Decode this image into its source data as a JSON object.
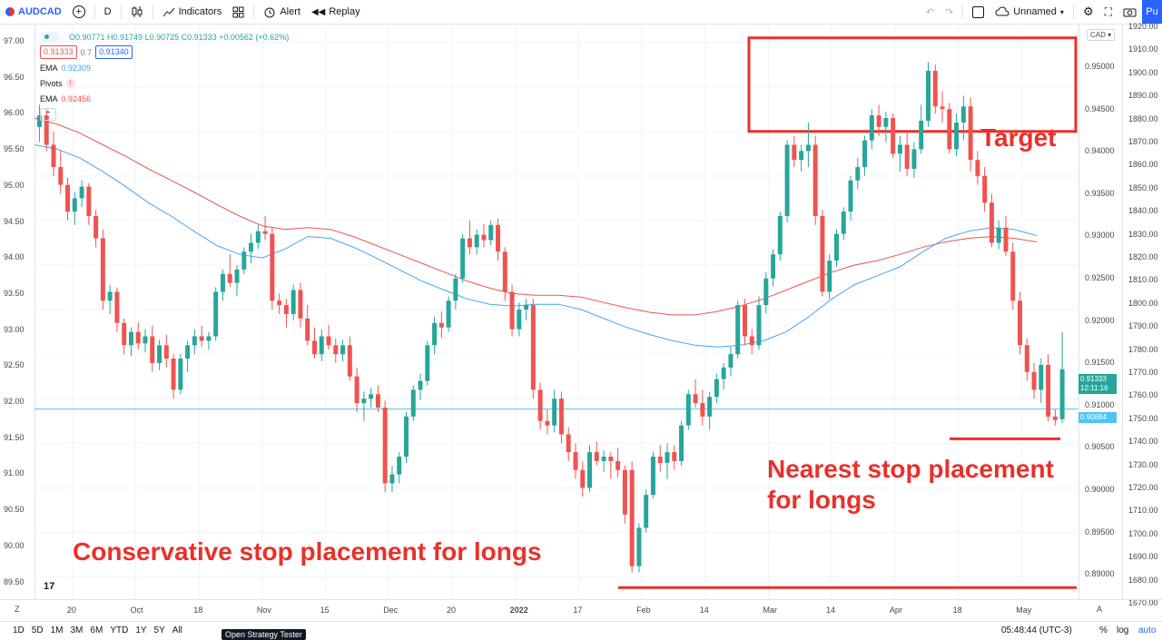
{
  "toolbar": {
    "symbol": "AUDCAD",
    "interval": "D",
    "indicators_label": "Indicators",
    "alert_label": "Alert",
    "replay_label": "Replay",
    "layout_name": "Unnamed",
    "publish_label": "Pu"
  },
  "legend": {
    "ohlc": "O0.90771 H0.91749 L0.90725 C0.91333 +0.00562 (+0.62%)",
    "bid": "0.91333",
    "spread": "0.7",
    "ask": "0.91340",
    "ema1_label": "EMA",
    "ema1_value": "0.92309",
    "pivots_label": "Pivots",
    "ema2_label": "EMA",
    "ema2_value": "0.92456"
  },
  "left_axis": [
    "97.00",
    "96.50",
    "96.00",
    "95.50",
    "95.00",
    "94.50",
    "94.00",
    "93.50",
    "93.00",
    "92.50",
    "92.00",
    "91.50",
    "91.00",
    "90.50",
    "90.00",
    "89.50"
  ],
  "right_axis_price": [
    "0.95000",
    "0.94500",
    "0.94000",
    "0.93500",
    "0.93000",
    "0.92500",
    "0.92000",
    "0.91500",
    "0.91000",
    "0.90500",
    "0.90000",
    "0.89500",
    "0.89000"
  ],
  "right_axis_outer": [
    "1920.00",
    "1910.00",
    "1900.00",
    "1890.00",
    "1880.00",
    "1870.00",
    "1860.00",
    "1850.00",
    "1840.00",
    "1830.00",
    "1820.00",
    "1810.00",
    "1800.00",
    "1790.00",
    "1780.00",
    "1770.00",
    "1760.00",
    "1750.00",
    "1740.00",
    "1730.00",
    "1720.00",
    "1710.00",
    "1700.00",
    "1690.00",
    "1680.00",
    "1670.00"
  ],
  "currency_tag": "CAD",
  "price_tag": {
    "price": "0.91333",
    "countdown": "12:11:16",
    "line_price": "0.90884"
  },
  "time_axis": [
    "20",
    "Oct",
    "18",
    "Nov",
    "15",
    "Dec",
    "20",
    "2022",
    "17",
    "Feb",
    "14",
    "Mar",
    "14",
    "Apr",
    "18",
    "May"
  ],
  "axis_corner_left": "Z",
  "axis_corner_right": "A",
  "annotations": {
    "target": "Target",
    "nearest_stop": "Nearest stop placement\nfor longs",
    "conservative_stop": "Conservative stop placement for longs"
  },
  "bottom_bar": {
    "timeframes": [
      "1D",
      "5D",
      "1M",
      "3M",
      "6M",
      "YTD",
      "1Y",
      "5Y",
      "All"
    ],
    "strategy_tester": "Open Strategy Tester",
    "clock": "05:48:44 (UTC-3)",
    "percent": "%",
    "log": "log",
    "auto": "auto"
  },
  "colors": {
    "up": "#26a69a",
    "down": "#ef5350",
    "ema_fast": "#42a5f5",
    "ema_slow": "#ef5350",
    "annotation": "#e8312a",
    "accent": "#2962ff"
  },
  "chart_data": {
    "type": "candlestick",
    "price_range": [
      0.8875,
      0.952
    ],
    "candles": [
      [
        0.9405,
        0.943,
        0.9388,
        0.9418
      ],
      [
        0.9418,
        0.9425,
        0.9378,
        0.9385
      ],
      [
        0.9385,
        0.94,
        0.935,
        0.936
      ],
      [
        0.936,
        0.9378,
        0.933,
        0.934
      ],
      [
        0.934,
        0.9348,
        0.93,
        0.931
      ],
      [
        0.931,
        0.9332,
        0.9295,
        0.9325
      ],
      [
        0.9325,
        0.9345,
        0.9315,
        0.9338
      ],
      [
        0.9338,
        0.9342,
        0.9295,
        0.9305
      ],
      [
        0.9305,
        0.9312,
        0.927,
        0.928
      ],
      [
        0.928,
        0.929,
        0.92,
        0.921
      ],
      [
        0.921,
        0.9228,
        0.9195,
        0.922
      ],
      [
        0.922,
        0.9225,
        0.9175,
        0.9185
      ],
      [
        0.9185,
        0.919,
        0.915,
        0.916
      ],
      [
        0.916,
        0.918,
        0.9148,
        0.9175
      ],
      [
        0.9175,
        0.9186,
        0.9155,
        0.9162
      ],
      [
        0.9162,
        0.9178,
        0.9152,
        0.917
      ],
      [
        0.917,
        0.9182,
        0.913,
        0.914
      ],
      [
        0.914,
        0.9166,
        0.9132,
        0.916
      ],
      [
        0.916,
        0.9172,
        0.9135,
        0.9145
      ],
      [
        0.9145,
        0.915,
        0.91,
        0.911
      ],
      [
        0.911,
        0.915,
        0.9105,
        0.9145
      ],
      [
        0.9145,
        0.9165,
        0.913,
        0.916
      ],
      [
        0.916,
        0.9178,
        0.915,
        0.917
      ],
      [
        0.917,
        0.9182,
        0.9158,
        0.9165
      ],
      [
        0.9165,
        0.9175,
        0.9155,
        0.917
      ],
      [
        0.917,
        0.9225,
        0.9165,
        0.922
      ],
      [
        0.922,
        0.9245,
        0.921,
        0.924
      ],
      [
        0.924,
        0.9262,
        0.9225,
        0.923
      ],
      [
        0.923,
        0.925,
        0.9215,
        0.9245
      ],
      [
        0.9245,
        0.927,
        0.924,
        0.9265
      ],
      [
        0.9265,
        0.9285,
        0.9252,
        0.9275
      ],
      [
        0.9275,
        0.9295,
        0.9268,
        0.9288
      ],
      [
        0.9288,
        0.9305,
        0.9278,
        0.9285
      ],
      [
        0.9285,
        0.9292,
        0.92,
        0.921
      ],
      [
        0.921,
        0.9218,
        0.9195,
        0.9205
      ],
      [
        0.9205,
        0.9212,
        0.918,
        0.9195
      ],
      [
        0.9195,
        0.9228,
        0.9188,
        0.9222
      ],
      [
        0.9222,
        0.923,
        0.918,
        0.919
      ],
      [
        0.919,
        0.9205,
        0.916,
        0.9165
      ],
      [
        0.9165,
        0.918,
        0.9145,
        0.915
      ],
      [
        0.915,
        0.9178,
        0.9142,
        0.917
      ],
      [
        0.917,
        0.9183,
        0.9155,
        0.916
      ],
      [
        0.916,
        0.9168,
        0.914,
        0.915
      ],
      [
        0.915,
        0.9166,
        0.9142,
        0.916
      ],
      [
        0.916,
        0.917,
        0.912,
        0.9125
      ],
      [
        0.9125,
        0.9135,
        0.9085,
        0.9095
      ],
      [
        0.9095,
        0.9108,
        0.9075,
        0.91
      ],
      [
        0.91,
        0.9112,
        0.909,
        0.9105
      ],
      [
        0.9105,
        0.9115,
        0.9085,
        0.909
      ],
      [
        0.909,
        0.9098,
        0.8995,
        0.9005
      ],
      [
        0.9005,
        0.9025,
        0.8995,
        0.9015
      ],
      [
        0.9015,
        0.904,
        0.9005,
        0.9035
      ],
      [
        0.9035,
        0.9085,
        0.9028,
        0.908
      ],
      [
        0.908,
        0.9115,
        0.9075,
        0.911
      ],
      [
        0.911,
        0.9128,
        0.9098,
        0.912
      ],
      [
        0.912,
        0.9165,
        0.9115,
        0.916
      ],
      [
        0.916,
        0.9192,
        0.915,
        0.9185
      ],
      [
        0.9185,
        0.9198,
        0.9168,
        0.918
      ],
      [
        0.918,
        0.9215,
        0.9175,
        0.921
      ],
      [
        0.921,
        0.924,
        0.92,
        0.9235
      ],
      [
        0.9235,
        0.9285,
        0.923,
        0.928
      ],
      [
        0.928,
        0.93,
        0.9262,
        0.927
      ],
      [
        0.927,
        0.929,
        0.9262,
        0.9284
      ],
      [
        0.9284,
        0.9296,
        0.927,
        0.9278
      ],
      [
        0.9278,
        0.93,
        0.9272,
        0.9295
      ],
      [
        0.9295,
        0.9302,
        0.9255,
        0.9265
      ],
      [
        0.9265,
        0.927,
        0.921,
        0.922
      ],
      [
        0.922,
        0.9228,
        0.917,
        0.9178
      ],
      [
        0.9178,
        0.9208,
        0.917,
        0.92
      ],
      [
        0.92,
        0.9212,
        0.9188,
        0.9205
      ],
      [
        0.9205,
        0.9212,
        0.91,
        0.911
      ],
      [
        0.911,
        0.9118,
        0.9065,
        0.9075
      ],
      [
        0.9075,
        0.9088,
        0.906,
        0.907
      ],
      [
        0.907,
        0.911,
        0.9062,
        0.91
      ],
      [
        0.91,
        0.9108,
        0.905,
        0.906
      ],
      [
        0.906,
        0.9068,
        0.903,
        0.904
      ],
      [
        0.904,
        0.905,
        0.901,
        0.902
      ],
      [
        0.902,
        0.903,
        0.899,
        0.9
      ],
      [
        0.9,
        0.9048,
        0.8995,
        0.904
      ],
      [
        0.904,
        0.9052,
        0.9025,
        0.903
      ],
      [
        0.903,
        0.9042,
        0.9018,
        0.9035
      ],
      [
        0.9035,
        0.904,
        0.901,
        0.903
      ],
      [
        0.903,
        0.9045,
        0.9012,
        0.902
      ],
      [
        0.902,
        0.9025,
        0.896,
        0.897
      ],
      [
        0.902,
        0.903,
        0.8905,
        0.8912
      ],
      [
        0.8912,
        0.896,
        0.8905,
        0.8955
      ],
      [
        0.8955,
        0.8998,
        0.895,
        0.8992
      ],
      [
        0.8992,
        0.904,
        0.8988,
        0.9035
      ],
      [
        0.9035,
        0.9048,
        0.9018,
        0.9028
      ],
      [
        0.9028,
        0.905,
        0.901,
        0.904
      ],
      [
        0.904,
        0.9048,
        0.902,
        0.903
      ],
      [
        0.903,
        0.9075,
        0.9025,
        0.907
      ],
      [
        0.907,
        0.911,
        0.9065,
        0.9105
      ],
      [
        0.9105,
        0.9122,
        0.909,
        0.9095
      ],
      [
        0.9095,
        0.911,
        0.907,
        0.908
      ],
      [
        0.908,
        0.9108,
        0.9065,
        0.9102
      ],
      [
        0.9102,
        0.9128,
        0.9095,
        0.9122
      ],
      [
        0.9122,
        0.914,
        0.911,
        0.9135
      ],
      [
        0.9135,
        0.9158,
        0.9125,
        0.915
      ],
      [
        0.915,
        0.921,
        0.9145,
        0.9205
      ],
      [
        0.9205,
        0.9212,
        0.916,
        0.917
      ],
      [
        0.917,
        0.9178,
        0.915,
        0.916
      ],
      [
        0.916,
        0.9215,
        0.9155,
        0.9205
      ],
      [
        0.9205,
        0.9242,
        0.9196,
        0.9235
      ],
      [
        0.9235,
        0.9268,
        0.9226,
        0.9262
      ],
      [
        0.9262,
        0.931,
        0.9255,
        0.9305
      ],
      [
        0.9305,
        0.939,
        0.9298,
        0.9385
      ],
      [
        0.9385,
        0.9395,
        0.936,
        0.9368
      ],
      [
        0.9368,
        0.9385,
        0.9355,
        0.9378
      ],
      [
        0.9378,
        0.941,
        0.936,
        0.9385
      ],
      [
        0.9385,
        0.9395,
        0.9295,
        0.9305
      ],
      [
        0.9305,
        0.9312,
        0.9215,
        0.922
      ],
      [
        0.922,
        0.9262,
        0.9212,
        0.9255
      ],
      [
        0.9255,
        0.929,
        0.9248,
        0.9285
      ],
      [
        0.9285,
        0.9315,
        0.9278,
        0.931
      ],
      [
        0.931,
        0.935,
        0.93,
        0.9345
      ],
      [
        0.9345,
        0.937,
        0.9335,
        0.936
      ],
      [
        0.936,
        0.9395,
        0.935,
        0.939
      ],
      [
        0.939,
        0.9425,
        0.938,
        0.9418
      ],
      [
        0.9418,
        0.943,
        0.9395,
        0.9405
      ],
      [
        0.9405,
        0.9422,
        0.9388,
        0.9415
      ],
      [
        0.9415,
        0.942,
        0.937,
        0.9375
      ],
      [
        0.9375,
        0.9395,
        0.9355,
        0.9385
      ],
      [
        0.9385,
        0.9398,
        0.935,
        0.9358
      ],
      [
        0.9358,
        0.9388,
        0.9348,
        0.938
      ],
      [
        0.938,
        0.943,
        0.9375,
        0.9412
      ],
      [
        0.9412,
        0.9478,
        0.9405,
        0.9468
      ],
      [
        0.9468,
        0.9475,
        0.942,
        0.9428
      ],
      [
        0.9428,
        0.9445,
        0.941,
        0.9425
      ],
      [
        0.9425,
        0.9432,
        0.9375,
        0.938
      ],
      [
        0.938,
        0.942,
        0.9372,
        0.941
      ],
      [
        0.941,
        0.944,
        0.939,
        0.9428
      ],
      [
        0.9428,
        0.9438,
        0.9355,
        0.9368
      ],
      [
        0.9368,
        0.9378,
        0.934,
        0.935
      ],
      [
        0.935,
        0.936,
        0.931,
        0.932
      ],
      [
        0.932,
        0.933,
        0.927,
        0.9275
      ],
      [
        0.9275,
        0.93,
        0.9268,
        0.9292
      ],
      [
        0.9292,
        0.9305,
        0.926,
        0.9265
      ],
      [
        0.9265,
        0.9275,
        0.92,
        0.921
      ],
      [
        0.921,
        0.922,
        0.915,
        0.916
      ],
      [
        0.916,
        0.9168,
        0.912,
        0.913
      ],
      [
        0.913,
        0.914,
        0.91,
        0.911
      ],
      [
        0.911,
        0.9145,
        0.9095,
        0.9138
      ],
      [
        0.9138,
        0.915,
        0.9075,
        0.908
      ],
      [
        0.908,
        0.9088,
        0.907,
        0.9076
      ],
      [
        0.9077,
        0.9175,
        0.9073,
        0.9133
      ]
    ],
    "ema_fast": [
      0.9385,
      0.938,
      0.937,
      0.9355,
      0.9338,
      0.932,
      0.9305,
      0.9288,
      0.9272,
      0.9262,
      0.9258,
      0.9268,
      0.9282,
      0.928,
      0.927,
      0.9258,
      0.9245,
      0.9232,
      0.9222,
      0.9212,
      0.9206,
      0.9204,
      0.9206,
      0.9206,
      0.92,
      0.919,
      0.918,
      0.9172,
      0.9165,
      0.916,
      0.9158,
      0.916,
      0.9165,
      0.9175,
      0.9192,
      0.9212,
      0.9228,
      0.9238,
      0.9248,
      0.9265,
      0.928,
      0.9288,
      0.9292,
      0.929,
      0.9283
    ],
    "ema_slow": [
      0.9415,
      0.9408,
      0.9398,
      0.9385,
      0.9372,
      0.9358,
      0.9345,
      0.9332,
      0.9318,
      0.9305,
      0.9294,
      0.929,
      0.9292,
      0.929,
      0.9282,
      0.9272,
      0.9262,
      0.9252,
      0.9242,
      0.9232,
      0.9224,
      0.9218,
      0.9216,
      0.9216,
      0.9214,
      0.9208,
      0.9202,
      0.9197,
      0.9194,
      0.9194,
      0.9198,
      0.9204,
      0.9212,
      0.9222,
      0.9232,
      0.9242,
      0.925,
      0.9255,
      0.9262,
      0.927,
      0.9276,
      0.928,
      0.9282,
      0.928,
      0.9276
    ],
    "horizontal_line": 0.90884,
    "target_zone": [
      0.94,
      0.9505
    ],
    "nearest_stop": 0.9055,
    "conservative_stop": 0.8888
  }
}
